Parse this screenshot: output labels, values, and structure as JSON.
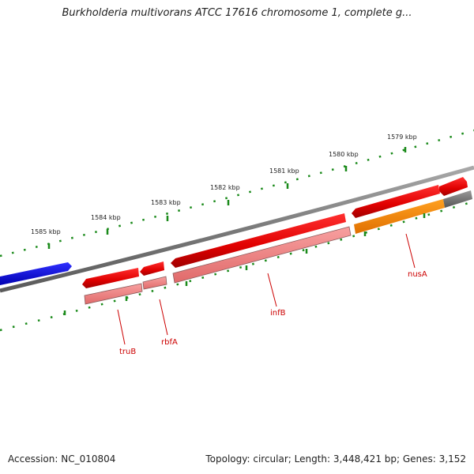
{
  "title": "Burkholderia multivorans ATCC 17616 chromosome 1, complete g...",
  "footer": {
    "accession": "Accession: NC_010804",
    "summary": "Topology: circular; Length: 3,448,421 bp; Genes: 3,152"
  },
  "scale_labels": [
    "1585 kbp",
    "1584 kbp",
    "1583 kbp",
    "1582 kbp",
    "1581 kbp",
    "1580 kbp",
    "1579 kbp"
  ],
  "genes": [
    {
      "name": "truB",
      "color": "#e60000"
    },
    {
      "name": "rbfA",
      "color": "#e60000"
    },
    {
      "name": "infB",
      "color": "#e60000"
    },
    {
      "name": "nusA",
      "color": "#e60000"
    }
  ],
  "colors": {
    "cds": "#e60000",
    "cds_light": "#f08080",
    "reverse_feature": "#0000e6",
    "rna_feature": "#ff8c00",
    "backbone": "#888888",
    "ticks": "#1a8a1a",
    "label": "#cc0000"
  }
}
